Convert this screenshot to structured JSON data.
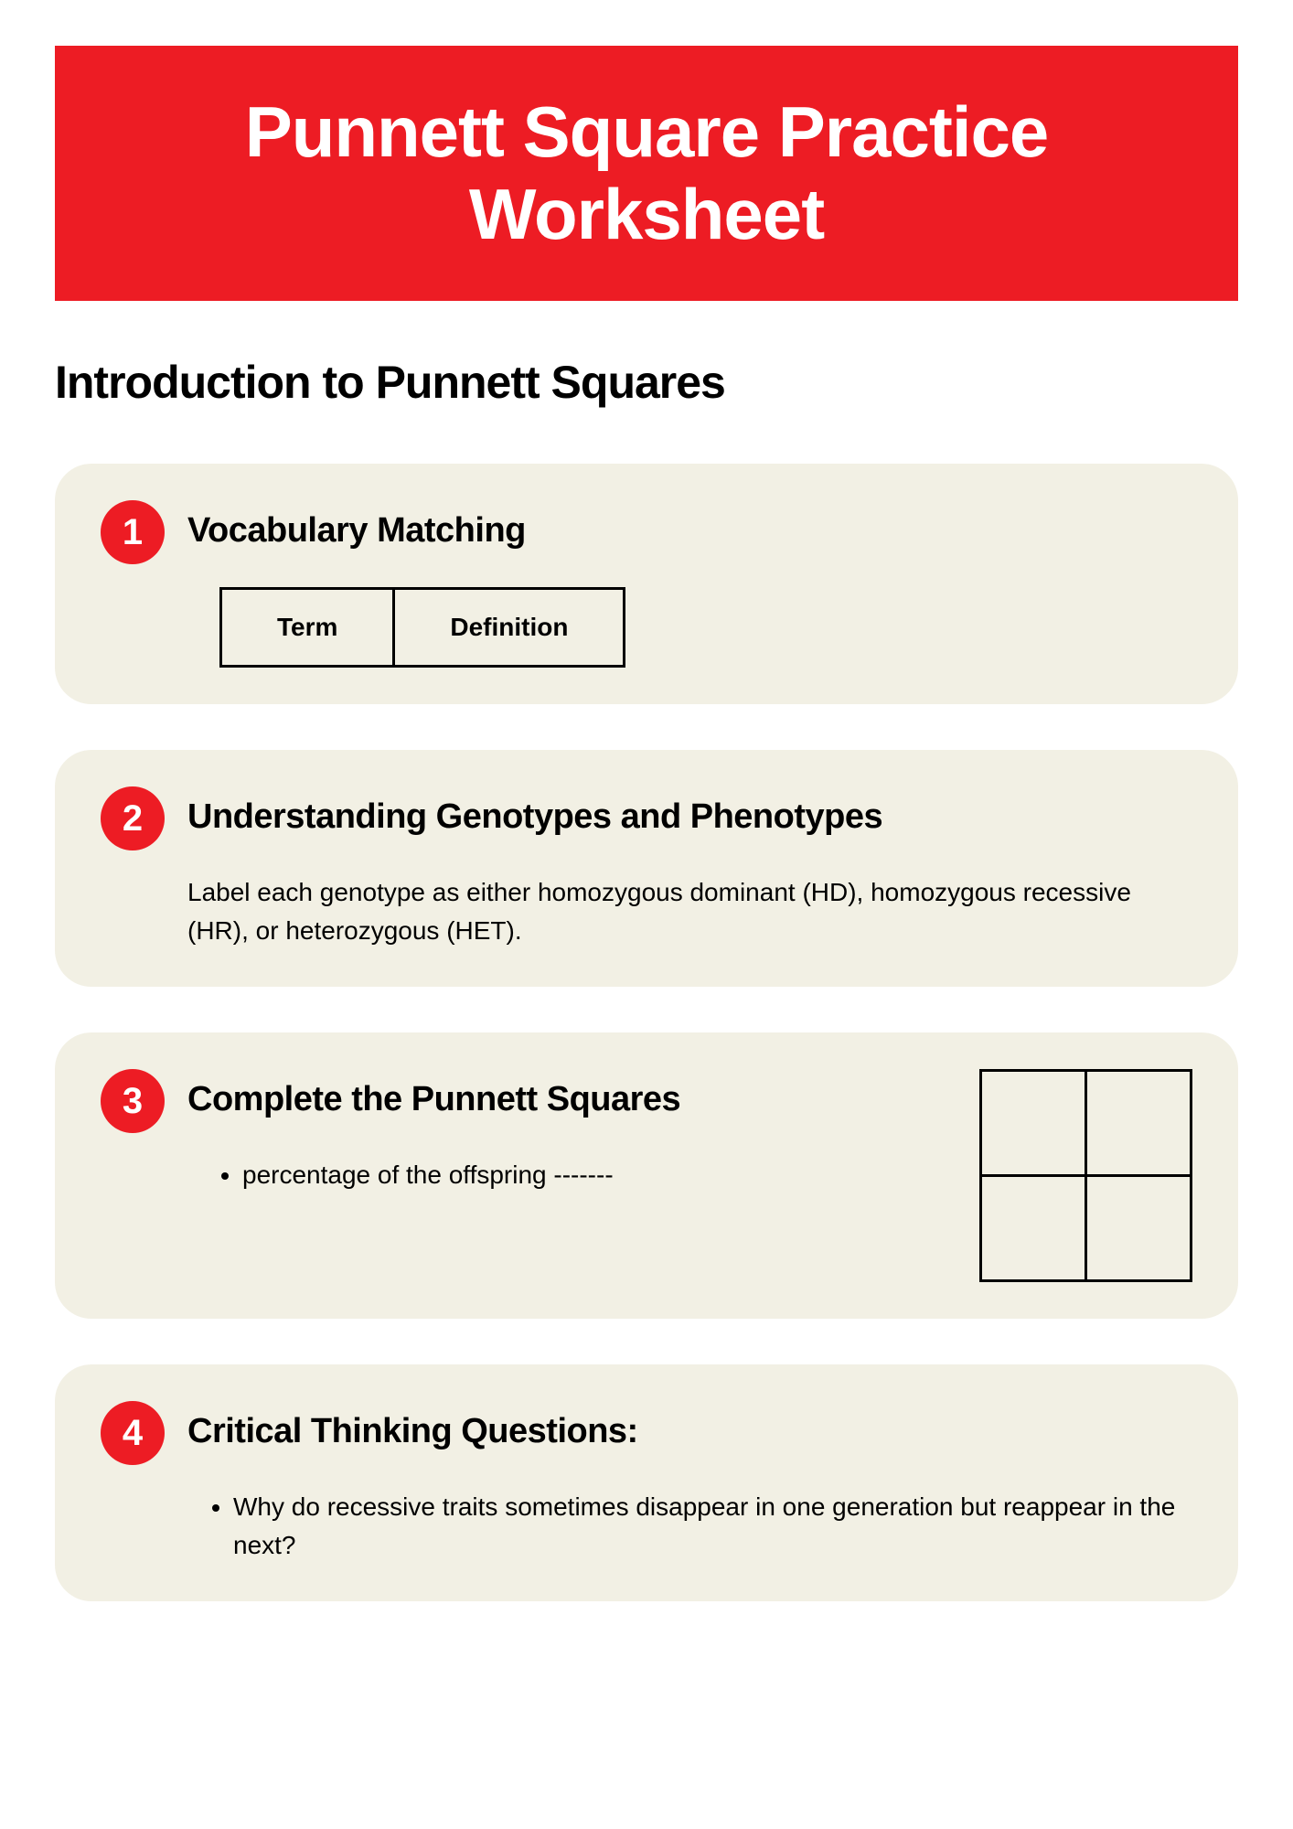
{
  "header": {
    "title": "Punnett Square Practice Worksheet"
  },
  "subtitle": "Introduction to Punnett Squares",
  "sections": [
    {
      "number": "1",
      "title": "Vocabulary Matching",
      "table": {
        "col1": "Term",
        "col2": "Definition"
      }
    },
    {
      "number": "2",
      "title": "Understanding Genotypes and Phenotypes",
      "instruction": "Label each genotype as either homozygous dominant (HD), homozygous recessive (HR), or heterozygous (HET)."
    },
    {
      "number": "3",
      "title": "Complete the Punnett Squares",
      "bullet": "percentage of the offspring -------"
    },
    {
      "number": "4",
      "title": "Critical Thinking Questions:",
      "bullet": "Why do recessive traits sometimes disappear in one generation but reappear in the next?"
    }
  ],
  "styling": {
    "header_bg": "#ed1c24",
    "header_text": "#ffffff",
    "card_bg": "#f2f0e4",
    "badge_bg": "#ed1c24",
    "badge_text": "#ffffff"
  }
}
